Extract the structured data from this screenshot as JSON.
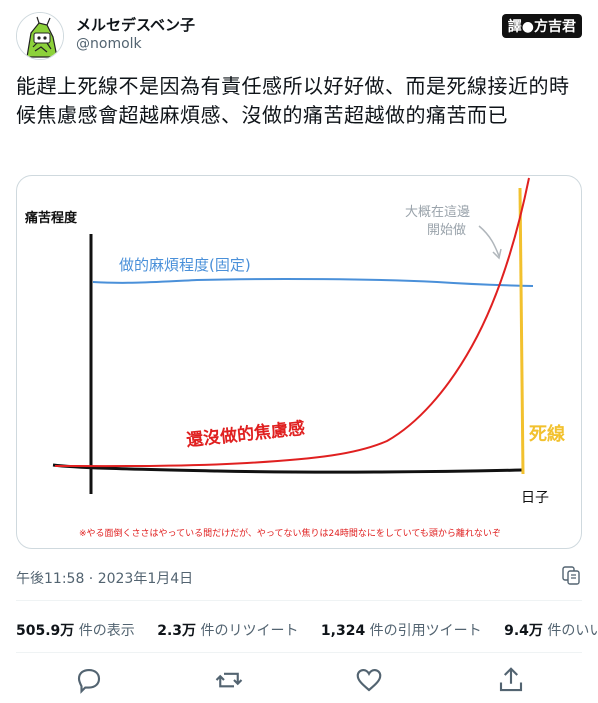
{
  "tweet": {
    "display_name": "メルセデスベン子",
    "handle": "@nomolk",
    "translator_badge": "譯●方吉君",
    "text": "能趕上死線不是因為有責任感所以好好做、而是死線接近的時候焦慮感會超越麻煩感、沒做的痛苦超越做的痛苦而已",
    "timestamp": "午後11:58 · 2023年1月4日"
  },
  "stats": [
    {
      "count": "505.9万",
      "label": "件の表示"
    },
    {
      "count": "2.3万",
      "label": "件のリツイート"
    },
    {
      "count": "1,324",
      "label": "件の引用ツイート"
    },
    {
      "count": "9.4万",
      "label": "件のいいね"
    }
  ],
  "image": {
    "y_label": "痛苦程度",
    "x_label": "日子",
    "blue_label": "做的麻煩程度(固定)",
    "red_label": "還沒做的焦慮感",
    "deadline_label": "死線",
    "annotation_line1": "大概在這邊",
    "annotation_line2": "開始做",
    "footnote": "※やる面倒くささはやっている間だけだが、やってない焦りは24時間なにをしていても頭から離れないぞ"
  },
  "colors": {
    "blue": "#4a90d9",
    "red": "#e02020",
    "deadline": "#f2c12e",
    "gray_text": "#9aa3ab",
    "muted": "#536471"
  },
  "icons": [
    "avatar-icon",
    "copy-link-icon",
    "reply-icon",
    "retweet-icon",
    "like-icon",
    "share-icon"
  ]
}
